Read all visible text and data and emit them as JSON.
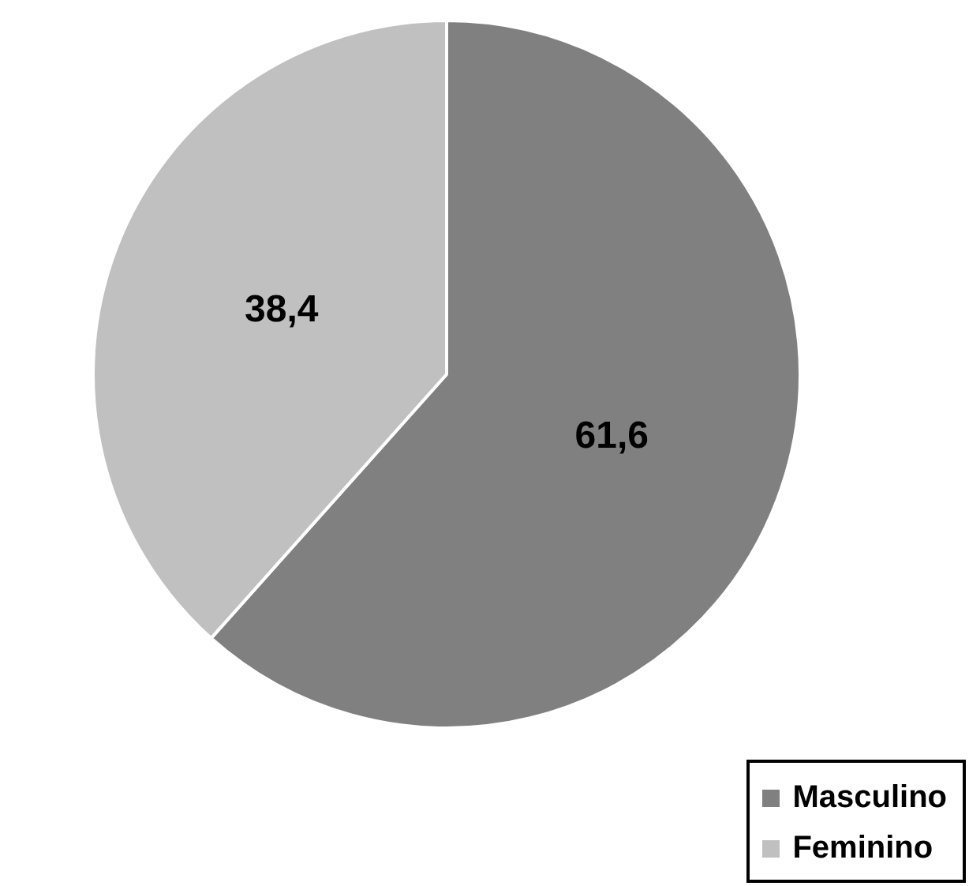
{
  "chart_data": {
    "type": "pie",
    "categories": [
      "Masculino",
      "Feminino"
    ],
    "values": [
      61.6,
      38.4
    ],
    "value_labels": [
      "61,6",
      "38,4"
    ],
    "colors": [
      "#808080",
      "#c0c0c0"
    ],
    "legend": "bottom right"
  }
}
